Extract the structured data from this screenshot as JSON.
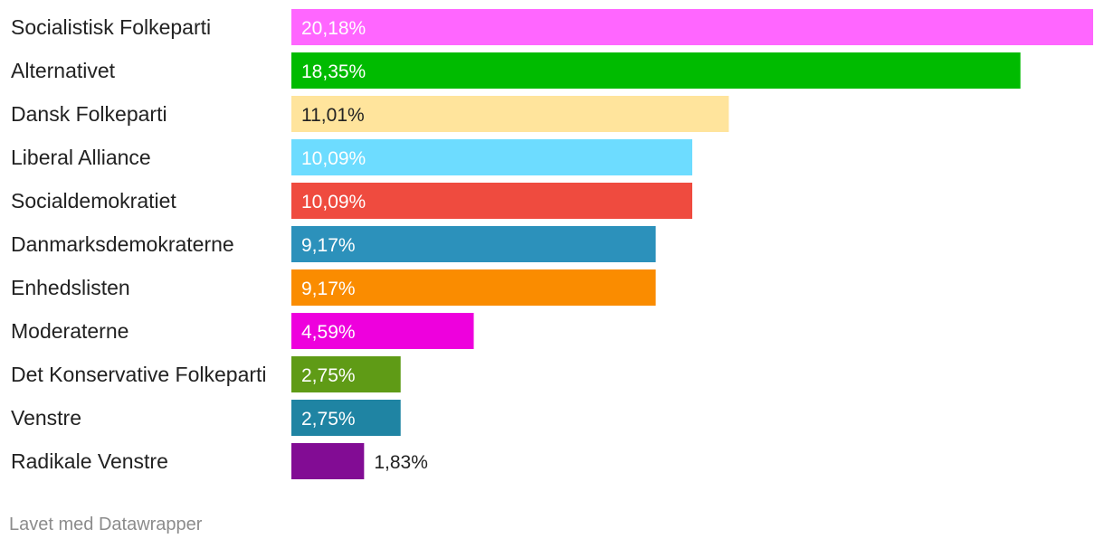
{
  "chart_data": {
    "type": "bar",
    "orientation": "horizontal",
    "categories": [
      "Socialistisk Folkeparti",
      "Alternativet",
      "Dansk Folkeparti",
      "Liberal Alliance",
      "Socialdemokratiet",
      "Danmarksdemokraterne",
      "Enhedslisten",
      "Moderaterne",
      "Det Konservative Folkeparti",
      "Venstre",
      "Radikale Venstre"
    ],
    "values": [
      20.18,
      18.35,
      11.01,
      10.09,
      10.09,
      9.17,
      9.17,
      4.59,
      2.75,
      2.75,
      1.83
    ],
    "value_labels": [
      "20,18%",
      "18,35%",
      "11,01%",
      "10,09%",
      "10,09%",
      "9,17%",
      "9,17%",
      "4,59%",
      "2,75%",
      "2,75%",
      "1,83%"
    ],
    "colors": [
      "#ff66ff",
      "#00bb00",
      "#ffe49c",
      "#6ddcff",
      "#ef4b3f",
      "#2c91bb",
      "#fa8c00",
      "#ee00dd",
      "#5f9b16",
      "#1f84a3",
      "#820c94"
    ],
    "xlim": [
      0,
      20.18
    ],
    "grid": false,
    "title": "",
    "xlabel": "",
    "ylabel": ""
  },
  "footer": {
    "credit": "Lavet med Datawrapper"
  }
}
